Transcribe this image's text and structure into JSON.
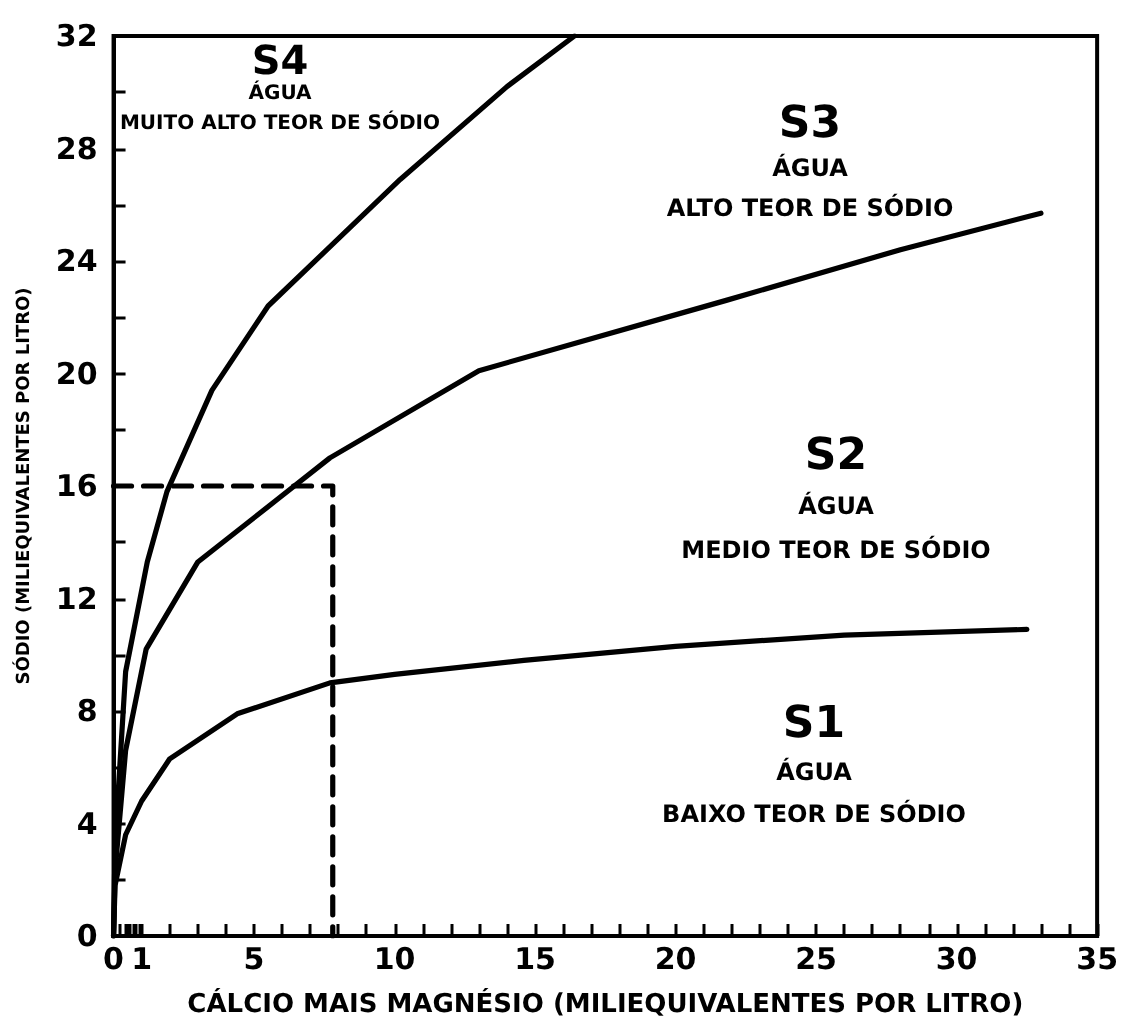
{
  "chart_data": {
    "type": "line",
    "xlabel": "CÁLCIO MAIS MAGNÉSIO (MILIEQUIVALENTES POR LITRO)",
    "ylabel": "SÓDIO (MILIEQUIVALENTES POR LITRO)",
    "xlim": [
      0,
      35
    ],
    "ylim": [
      0,
      32
    ],
    "xticks": [
      0,
      {
        "value": 0.2,
        "label": null
      },
      {
        "value": 0.4,
        "label": null
      },
      {
        "value": 0.5,
        "label": null
      },
      {
        "value": 0.6,
        "label": null
      },
      {
        "value": 0.7,
        "label": null
      },
      {
        "value": 0.8,
        "label": null
      },
      {
        "value": 0.9,
        "label": null
      },
      1,
      {
        "value": 2,
        "label": null
      },
      {
        "value": 3,
        "label": null
      },
      {
        "value": 4,
        "label": null
      },
      5,
      {
        "value": 6,
        "label": null
      },
      {
        "value": 7,
        "label": null
      },
      {
        "value": 8,
        "label": null
      },
      {
        "value": 9,
        "label": null
      },
      10,
      {
        "value": 11,
        "label": null
      },
      {
        "value": 12,
        "label": null
      },
      {
        "value": 13,
        "label": null
      },
      {
        "value": 14,
        "label": null
      },
      15,
      {
        "value": 16,
        "label": null
      },
      {
        "value": 17,
        "label": null
      },
      {
        "value": 18,
        "label": null
      },
      {
        "value": 19,
        "label": null
      },
      20,
      {
        "value": 21,
        "label": null
      },
      {
        "value": 22,
        "label": null
      },
      {
        "value": 23,
        "label": null
      },
      {
        "value": 24,
        "label": null
      },
      25,
      {
        "value": 26,
        "label": null
      },
      {
        "value": 27,
        "label": null
      },
      {
        "value": 28,
        "label": null
      },
      {
        "value": 29,
        "label": null
      },
      30,
      {
        "value": 31,
        "label": null
      },
      {
        "value": 32,
        "label": null
      },
      {
        "value": 33,
        "label": null
      },
      {
        "value": 34,
        "label": null
      },
      35
    ],
    "yticks": [
      0,
      {
        "value": 2,
        "label": null
      },
      4,
      {
        "value": 6,
        "label": null
      },
      8,
      {
        "value": 10,
        "label": null
      },
      12,
      {
        "value": 14,
        "label": null
      },
      16,
      {
        "value": 18,
        "label": null
      },
      20,
      {
        "value": 22,
        "label": null
      },
      24,
      {
        "value": 26,
        "label": null
      },
      28,
      {
        "value": 30,
        "label": null
      },
      32
    ],
    "grid": false,
    "marker": "none",
    "line_style": "solid",
    "series": [
      {
        "color": "#000000",
        "x": [
          0,
          0.054,
          0.43,
          1,
          2,
          4.4,
          7.7,
          10,
          14.6,
          20,
          26,
          32.5
        ],
        "values": [
          0,
          1.8,
          3.6,
          4.8,
          6.3,
          7.9,
          9.0,
          9.3,
          9.8,
          10.3,
          10.7,
          10.9
        ]
      },
      {
        "color": "#000000",
        "x": [
          0,
          0.054,
          0.43,
          1.16,
          3,
          5.8,
          7.7,
          13,
          21.8,
          28,
          33
        ],
        "values": [
          0,
          2.3,
          6.6,
          10.2,
          13.3,
          15.5,
          17.0,
          20.1,
          22.6,
          24.4,
          25.7
        ]
      },
      {
        "color": "#000000",
        "x": [
          0,
          0.054,
          0.43,
          1.2,
          1.9,
          3.5,
          5.5,
          10.2,
          14,
          16.4
        ],
        "values": [
          0,
          3.3,
          9.4,
          13.3,
          15.8,
          19.4,
          22.4,
          26.9,
          30.2,
          32
        ]
      },
      {
        "color": "#000000",
        "line_style": "dashed",
        "x": [
          0,
          7.8,
          7.8
        ],
        "values": [
          16,
          16,
          0
        ]
      }
    ],
    "annotations": [
      "S4",
      "ÁGUA",
      "MUITO ALTO TEOR DE SÓDIO",
      "S3",
      "ÁGUA",
      "ALTO TEOR DE SÓDIO",
      "S2",
      "ÁGUA",
      "MEDIO TEOR DE SÓDIO",
      "S1",
      "ÁGUA",
      "BAIXO TEOR DE SÓDIO"
    ]
  }
}
